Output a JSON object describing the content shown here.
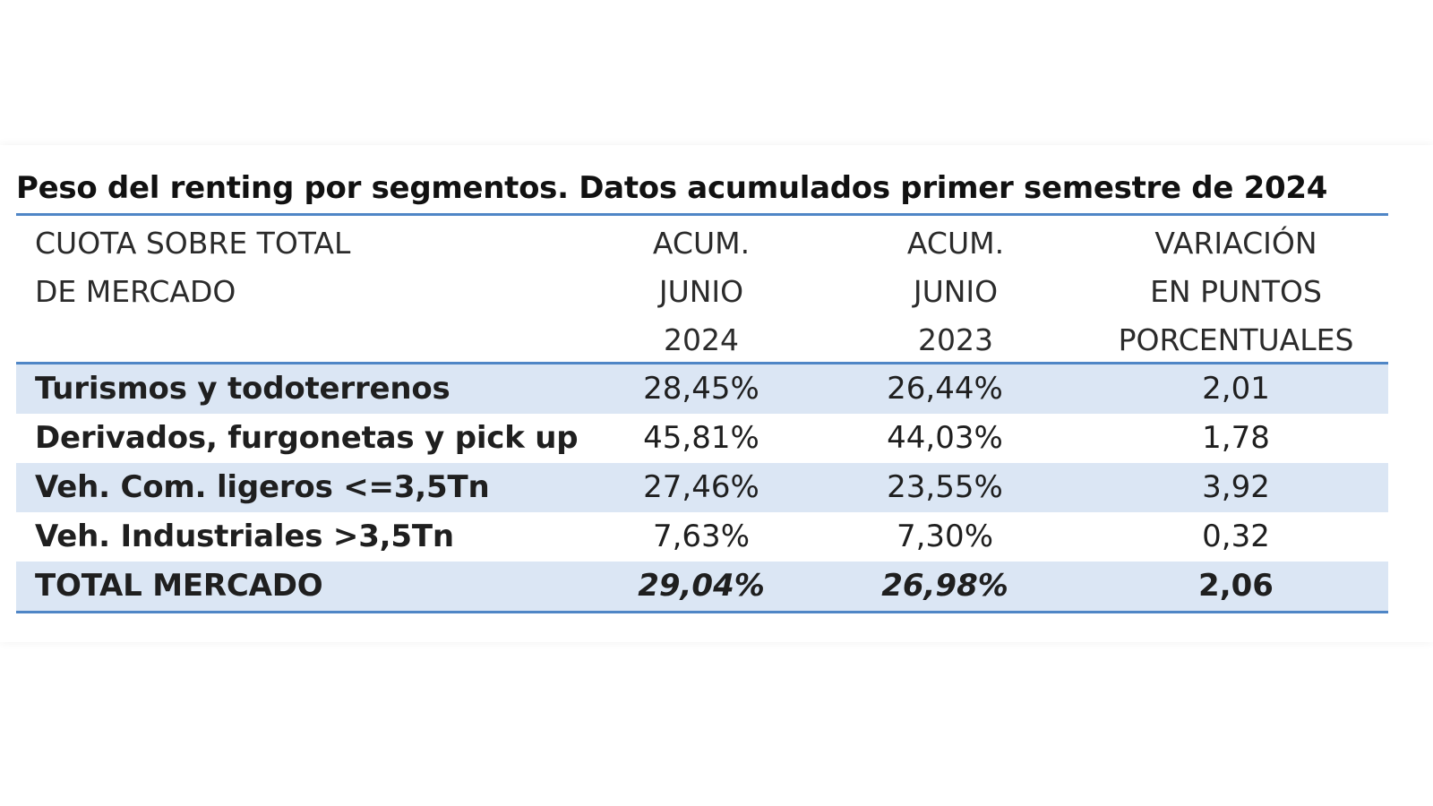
{
  "colors": {
    "accent_rule": "#4f86c6",
    "band_fill": "#dbe6f4",
    "text": "#1f1f1f"
  },
  "title": "Peso del renting por segmentos. Datos acumulados primer semestre de 2024",
  "chart_data": {
    "type": "table",
    "title": "Peso del renting por segmentos. Datos acumulados primer semestre de 2024",
    "columns": [
      {
        "lines": [
          "CUOTA SOBRE TOTAL",
          "DE MERCADO"
        ]
      },
      {
        "lines": [
          "ACUM.",
          "JUNIO",
          "2024"
        ]
      },
      {
        "lines": [
          "ACUM.",
          "JUNIO",
          "2023"
        ]
      },
      {
        "lines": [
          "VARIACIÓN",
          "EN PUNTOS",
          "PORCENTUALES"
        ]
      }
    ],
    "rows": [
      {
        "label": "Turismos y todoterrenos",
        "acum_2024": "28,45%",
        "acum_2023": "26,44%",
        "variacion": "2,01",
        "shaded": true
      },
      {
        "label": "Derivados, furgonetas y pick up",
        "acum_2024": "45,81%",
        "acum_2023": "44,03%",
        "variacion": "1,78",
        "shaded": false
      },
      {
        "label": "Veh. Com. ligeros <=3,5Tn",
        "acum_2024": "27,46%",
        "acum_2023": "23,55%",
        "variacion": "3,92",
        "shaded": true
      },
      {
        "label": "Veh. Industriales >3,5Tn",
        "acum_2024": "7,63%",
        "acum_2023": "7,30%",
        "variacion": "0,32",
        "shaded": false
      },
      {
        "label": "TOTAL MERCADO",
        "acum_2024": "29,04%",
        "acum_2023": "26,98%",
        "variacion": "2,06",
        "shaded": true,
        "total": true
      }
    ]
  }
}
